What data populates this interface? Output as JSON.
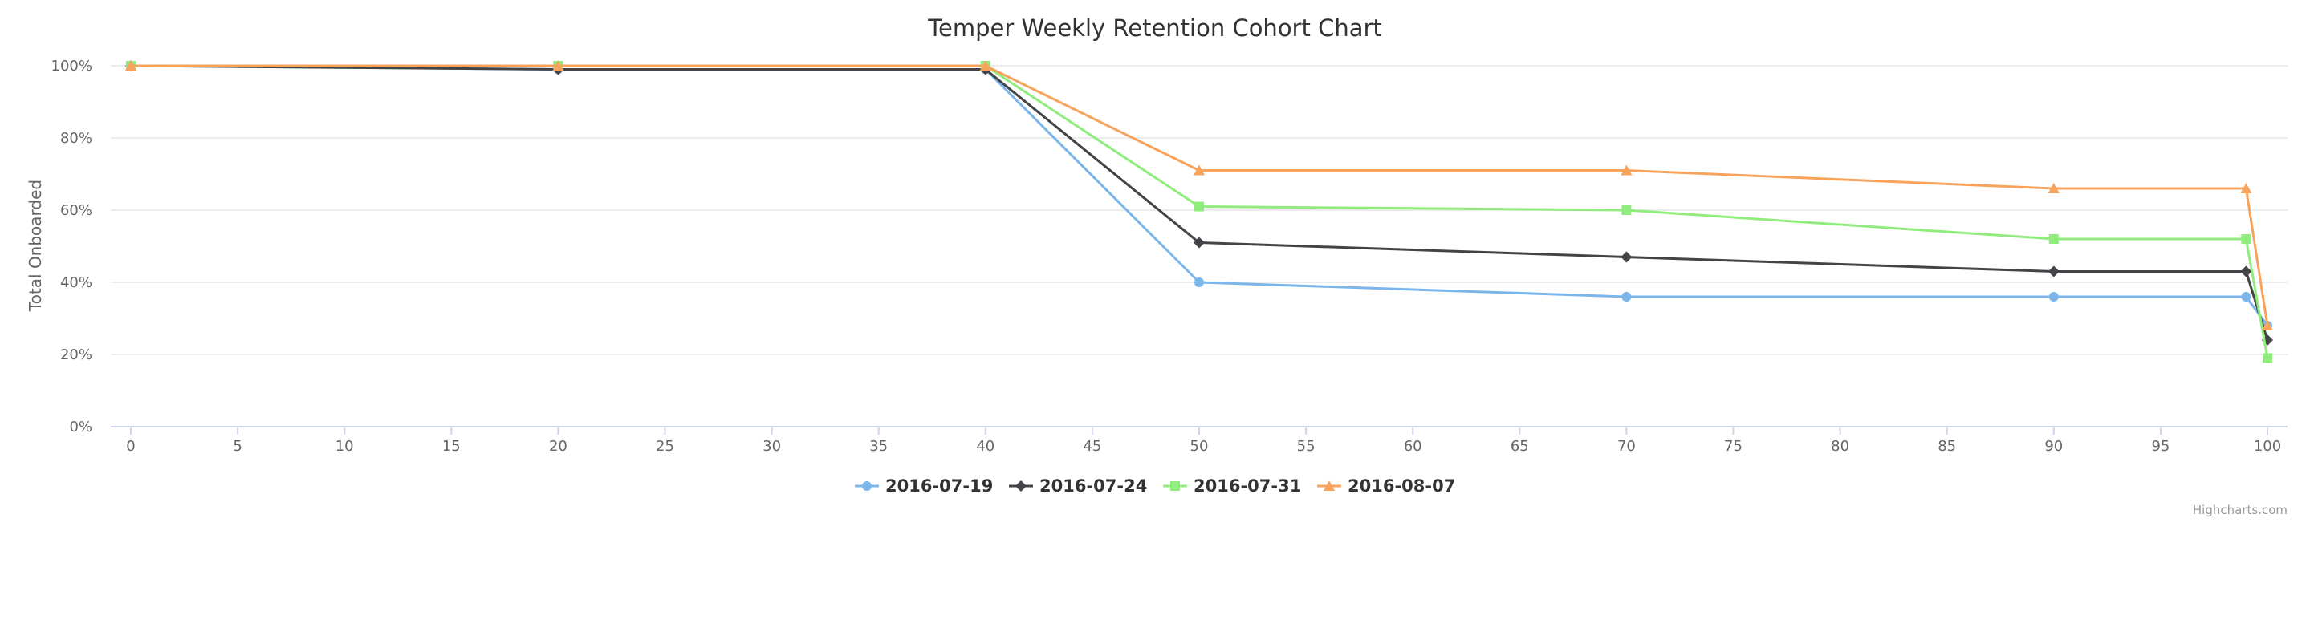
{
  "chart_data": {
    "type": "line",
    "title": "Temper Weekly Retention Cohort Chart",
    "xlabel": "",
    "ylabel": "Total Onboarded",
    "xlim": [
      0,
      100
    ],
    "ylim": [
      0,
      100
    ],
    "x_ticks": [
      "0",
      "5",
      "10",
      "15",
      "20",
      "25",
      "30",
      "35",
      "40",
      "45",
      "50",
      "55",
      "60",
      "65",
      "70",
      "75",
      "80",
      "85",
      "90",
      "95",
      "100"
    ],
    "y_ticks": [
      "0%",
      "20%",
      "40%",
      "60%",
      "80%",
      "100%"
    ],
    "grid": true,
    "legend_position": "bottom-center",
    "series": [
      {
        "name": "2016-07-19",
        "color": "#7cb5ec",
        "marker": "circle",
        "x": [
          0,
          20,
          40,
          50,
          70,
          90,
          99,
          100
        ],
        "y": [
          100,
          99,
          99,
          40,
          36,
          36,
          36,
          28
        ]
      },
      {
        "name": "2016-07-24",
        "color": "#434348",
        "marker": "diamond",
        "x": [
          0,
          20,
          40,
          50,
          70,
          90,
          99,
          100
        ],
        "y": [
          100,
          99,
          99,
          51,
          47,
          43,
          43,
          24
        ]
      },
      {
        "name": "2016-07-31",
        "color": "#90ed7d",
        "marker": "square",
        "x": [
          0,
          20,
          40,
          50,
          70,
          90,
          99,
          100
        ],
        "y": [
          100,
          100,
          100,
          61,
          60,
          52,
          52,
          19
        ]
      },
      {
        "name": "2016-08-07",
        "color": "#f7a35c",
        "marker": "triangle",
        "x": [
          0,
          20,
          40,
          50,
          70,
          90,
          99,
          100
        ],
        "y": [
          100,
          100,
          100,
          71,
          71,
          66,
          66,
          28
        ]
      }
    ]
  },
  "credits": "Highcharts.com"
}
